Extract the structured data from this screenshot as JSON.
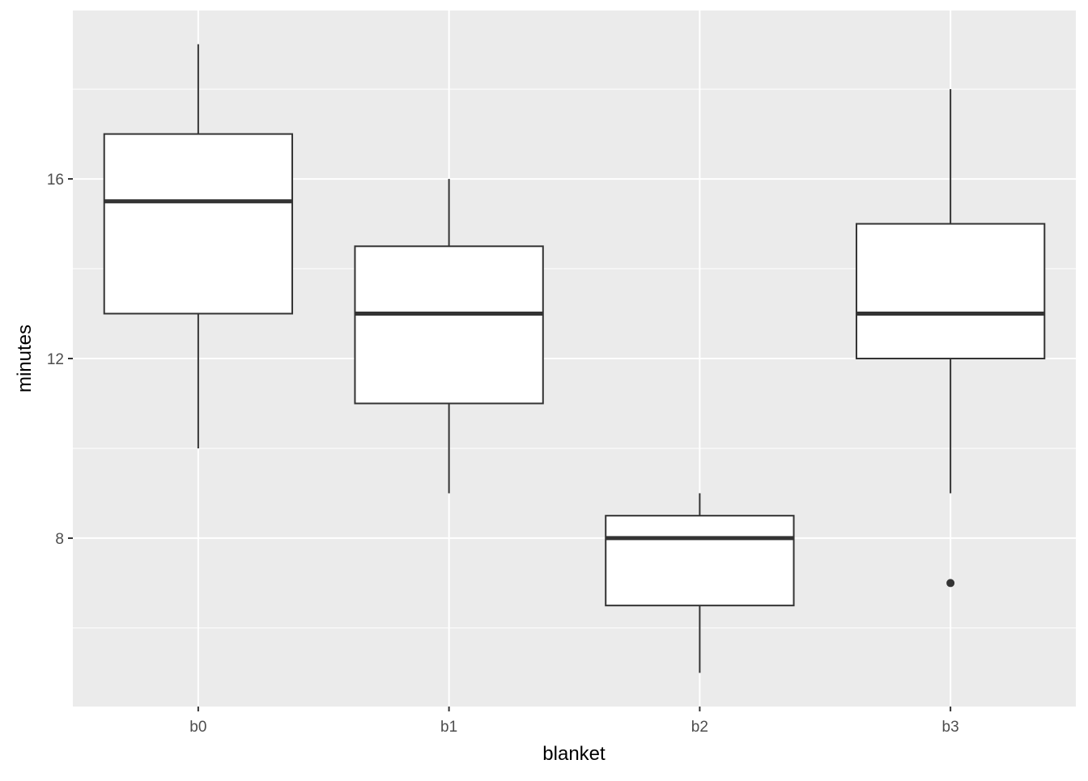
{
  "chart_data": {
    "type": "boxplot",
    "title": "",
    "xlabel": "blanket",
    "ylabel": "minutes",
    "ylim": [
      4.25,
      19.75
    ],
    "yticks": [
      8,
      12,
      16
    ],
    "y_minor_ticks": [
      6,
      10,
      14,
      18
    ],
    "grid": true,
    "legend": "none",
    "categories": [
      "b0",
      "b1",
      "b2",
      "b3"
    ],
    "boxes": [
      {
        "category": "b0",
        "whisker_low": 10,
        "q1": 13,
        "median": 15.5,
        "q3": 17,
        "whisker_high": 19,
        "outliers": []
      },
      {
        "category": "b1",
        "whisker_low": 9,
        "q1": 11,
        "median": 13,
        "q3": 14.5,
        "whisker_high": 16,
        "outliers": []
      },
      {
        "category": "b2",
        "whisker_low": 5,
        "q1": 6.5,
        "median": 8,
        "q3": 8.5,
        "whisker_high": 9,
        "outliers": []
      },
      {
        "category": "b3",
        "whisker_low": 9,
        "q1": 12,
        "median": 13,
        "q3": 15,
        "whisker_high": 18,
        "outliers": [
          7
        ]
      }
    ],
    "colors": {
      "panel_background": "#ebebeb",
      "grid": "#ffffff",
      "box_fill": "#ffffff",
      "box_stroke": "#333333",
      "tick_text": "#4d4d4d",
      "tick_mark": "#333333"
    }
  }
}
